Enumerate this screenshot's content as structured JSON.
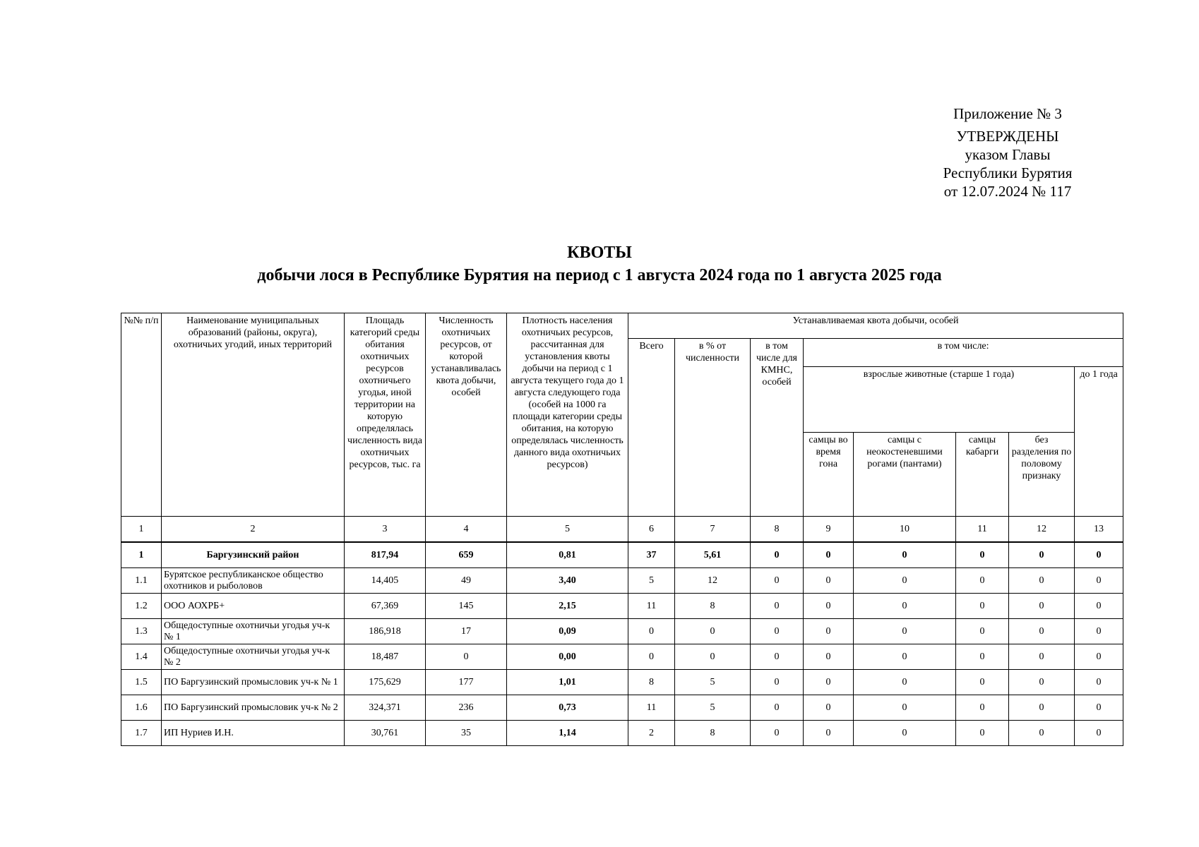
{
  "approval": {
    "annex": "Приложение № 3",
    "approved": "УТВЕРЖДЕНЫ",
    "line1": "указом Главы",
    "line2": "Республики Бурятия",
    "line3": "от 12.07.2024 № 117"
  },
  "title": {
    "main": "КВОТЫ",
    "sub": "добычи лося в Республике Бурятия на период с 1 августа 2024 года по 1 августа 2025 года"
  },
  "table": {
    "headers": {
      "no": "№№ п/п",
      "name": "Наименование муниципальных образований (районы, округа), охотничьих угодий, иных территорий",
      "area": "Площадь категорий среды обитания охотничьих ресурсов охотничьего угодья, иной территории на которую определялась численность вида охотничьих ресурсов, тыс. га",
      "count": "Численность охотничьих ресурсов, от которой устанавливалась квота добычи, особей",
      "density": "Плотность населения охотничьих ресурсов, рассчитанная для установления квоты добычи на период с 1 августа текущего года до 1 августа следующего года (особей на 1000 га площади категории среды обитания, на которую определялась численность данного вида охотничьих ресурсов)",
      "quota": "Устанавливаемая квота добычи, особей",
      "total": "Всего",
      "percent": "в % от численности",
      "kmns": "в том числе для КМНС, особей",
      "including": "в том числе:",
      "adults": "взрослые животные (старше 1 года)",
      "under1": "до 1 года",
      "rut": "самцы во время гона",
      "velvet": "самцы с неокостеневшими рогами (пантами)",
      "musk": "самцы кабарги",
      "nosex": "без разделения по половому признаку"
    },
    "column_numbers": [
      "1",
      "2",
      "3",
      "4",
      "5",
      "6",
      "7",
      "8",
      "9",
      "10",
      "11",
      "12",
      "13"
    ],
    "rows": [
      {
        "no": "1",
        "name": "Баргузинский район",
        "area": "817,94",
        "count": "659",
        "density": "0,81",
        "total": "37",
        "percent": "5,61",
        "kmns": "0",
        "rut": "0",
        "velvet": "0",
        "musk": "0",
        "nosex": "0",
        "under1": "0",
        "bold": true
      },
      {
        "no": "1.1",
        "name": "Бурятское республиканское общество охотников и рыболовов",
        "area": "14,405",
        "count": "49",
        "density": "3,40",
        "total": "5",
        "percent": "12",
        "kmns": "0",
        "rut": "0",
        "velvet": "0",
        "musk": "0",
        "nosex": "0",
        "under1": "0"
      },
      {
        "no": "1.2",
        "name": "ООО АОХРБ+",
        "area": "67,369",
        "count": "145",
        "density": "2,15",
        "total": "11",
        "percent": "8",
        "kmns": "0",
        "rut": "0",
        "velvet": "0",
        "musk": "0",
        "nosex": "0",
        "under1": "0"
      },
      {
        "no": "1.3",
        "name": "Общедоступные охотничьи угодья уч-к № 1",
        "area": "186,918",
        "count": "17",
        "density": "0,09",
        "total": "0",
        "percent": "0",
        "kmns": "0",
        "rut": "0",
        "velvet": "0",
        "musk": "0",
        "nosex": "0",
        "under1": "0"
      },
      {
        "no": "1.4",
        "name": "Общедоступные охотничьи угодья уч-к № 2",
        "area": "18,487",
        "count": "0",
        "density": "0,00",
        "total": "0",
        "percent": "0",
        "kmns": "0",
        "rut": "0",
        "velvet": "0",
        "musk": "0",
        "nosex": "0",
        "under1": "0"
      },
      {
        "no": "1.5",
        "name": "ПО Баргузинский промысловик уч-к № 1",
        "area": "175,629",
        "count": "177",
        "density": "1,01",
        "total": "8",
        "percent": "5",
        "kmns": "0",
        "rut": "0",
        "velvet": "0",
        "musk": "0",
        "nosex": "0",
        "under1": "0"
      },
      {
        "no": "1.6",
        "name": "ПО Баргузинский промысловик уч-к № 2",
        "area": "324,371",
        "count": "236",
        "density": "0,73",
        "total": "11",
        "percent": "5",
        "kmns": "0",
        "rut": "0",
        "velvet": "0",
        "musk": "0",
        "nosex": "0",
        "under1": "0"
      },
      {
        "no": "1.7",
        "name": "ИП Нуриев И.Н.",
        "area": "30,761",
        "count": "35",
        "density": "1,14",
        "total": "2",
        "percent": "8",
        "kmns": "0",
        "rut": "0",
        "velvet": "0",
        "musk": "0",
        "nosex": "0",
        "under1": "0"
      }
    ]
  }
}
